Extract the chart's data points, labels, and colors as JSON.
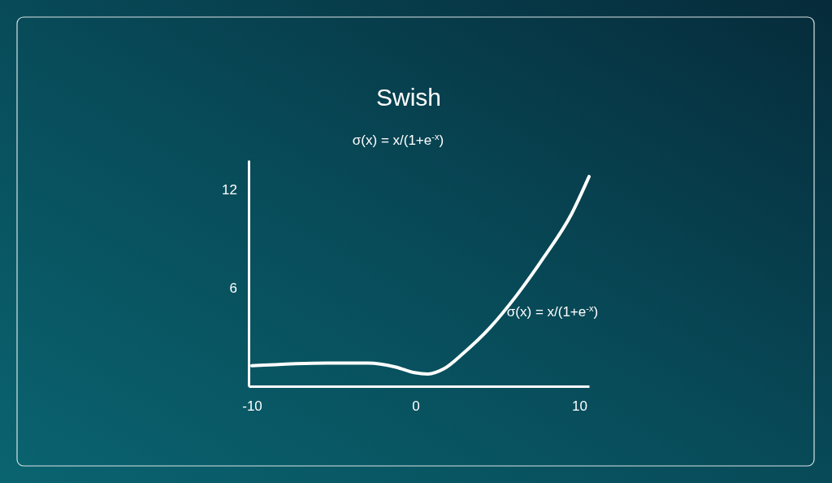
{
  "chart_data": {
    "type": "line",
    "title": "Swish",
    "x": [
      -10,
      -5.4,
      -2.9,
      -1.2,
      -0.07,
      0.75,
      1.75,
      2.9,
      4.55,
      6.2,
      7.87,
      9.52,
      10.6
    ],
    "series": [
      {
        "color": "#ffffff",
        "values": [
          1.25,
          1.42,
          1.42,
          1.17,
          0.83,
          0.75,
          1.08,
          2.0,
          3.58,
          5.58,
          7.92,
          10.5,
          12.8
        ]
      }
    ],
    "xlim": [
      -10.2,
      10.6
    ],
    "ylim": [
      0,
      13.8
    ],
    "xticks": [
      -10,
      0,
      10
    ],
    "yticks": [
      6,
      12
    ],
    "annotations": [
      "σ(x) = x/(1+e$^{-x}$)",
      "σ(x) = x/(1+e$^{-x}$)"
    ]
  }
}
